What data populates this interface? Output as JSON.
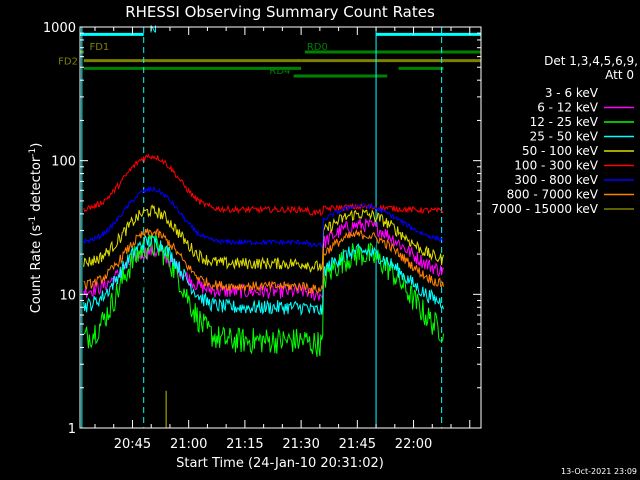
{
  "chart_data": {
    "type": "line",
    "title": "RHESSI Observing Summary Count Rates",
    "xlabel": "Start Time (24-Jan-10 20:31:02)",
    "ylabel_parts": {
      "pre": "Count Rate (s",
      "sup1": "-1",
      "mid": " detector",
      "sup2": "-1",
      "post": ")"
    },
    "x_unit": "minutes of day",
    "xlim": [
      1231,
      1338
    ],
    "ylim": [
      1,
      1000
    ],
    "yscale": "log",
    "x_tick_labels": [
      "20:45",
      "21:00",
      "21:15",
      "21:30",
      "21:45",
      "22:00"
    ],
    "x_tick_values": [
      1245,
      1260,
      1275,
      1290,
      1305,
      1320
    ],
    "y_tick_labels": [
      "1",
      "10",
      "100",
      "1000"
    ],
    "y_tick_values": [
      1,
      10,
      100,
      1000
    ],
    "grid": false,
    "legend_position": "right",
    "legend_header": [
      "Det 1,3,4,5,6,9,",
      "Att 0"
    ],
    "timestamp": "13-Oct-2021 23:09",
    "data_span": [
      1232,
      1328
    ],
    "gap": [
      1296,
      1313
    ],
    "series": [
      {
        "name": "3 - 6 keV",
        "color": "#000000",
        "base1": 6.5,
        "peak1": [
          1249,
          15,
          5
        ],
        "base2": 10,
        "peak2": [
          1306,
          27,
          9
        ],
        "noise": 0.32
      },
      {
        "name": "6 - 12 keV",
        "color": "#ff00ff",
        "base1": 10.5,
        "peak1": [
          1250,
          21,
          6
        ],
        "base2": 14,
        "peak2": [
          1306,
          33,
          9
        ],
        "noise": 0.12
      },
      {
        "name": "12 - 25 keV",
        "color": "#00ff00",
        "base1": 4.5,
        "peak1": [
          1250,
          23,
          6
        ],
        "base2": 4.5,
        "peak2": [
          1306,
          20,
          9
        ],
        "noise": 0.22
      },
      {
        "name": "25 - 50 keV",
        "color": "#00ffff",
        "base1": 8,
        "peak1": [
          1250,
          25,
          6
        ],
        "base2": 8,
        "peak2": [
          1306,
          21,
          9
        ],
        "noise": 0.12
      },
      {
        "name": "50 - 100 keV",
        "color": "#dddd00",
        "base1": 17,
        "peak1": [
          1250,
          42,
          6
        ],
        "base2": 17,
        "peak2": [
          1306,
          40,
          9
        ],
        "noise": 0.1
      },
      {
        "name": "100 - 300 keV",
        "color": "#ff0000",
        "base1": 43,
        "peak1": [
          1250,
          108,
          6
        ],
        "base2": 42,
        "peak2": [
          1306,
          45,
          9
        ],
        "noise": 0.05
      },
      {
        "name": "300 - 800 keV",
        "color": "#0000ff",
        "base1": 24.5,
        "peak1": [
          1250,
          61,
          6
        ],
        "base2": 24.5,
        "peak2": [
          1306,
          46,
          9
        ],
        "noise": 0.04
      },
      {
        "name": "800 - 7000 keV",
        "color": "#ff8000",
        "base1": 11.5,
        "peak1": [
          1250,
          29,
          6
        ],
        "base2": 11,
        "peak2": [
          1306,
          28,
          9
        ],
        "noise": 0.08
      },
      {
        "name": "7000 - 15000 keV",
        "color": "#808000",
        "base1": 0,
        "peak1": [
          1253,
          0,
          0
        ],
        "base2": 0,
        "peak2": [
          1306,
          0,
          0
        ],
        "noise": 0
      }
    ],
    "spikes": [
      {
        "x": 1254,
        "y": 1.9,
        "color": "#808000"
      }
    ],
    "flags": [
      {
        "label": "N",
        "color": "#00ffff",
        "level": 880,
        "segments": [
          [
            1231,
            1248
          ],
          [
            1310,
            1338
          ]
        ],
        "label_at": 1249
      },
      {
        "label": "FD1",
        "color": "#808000",
        "level": 650,
        "segments": [
          [
            1231,
            1232
          ]
        ],
        "label_at": 1233
      },
      {
        "label": "FD2",
        "color": "#808000",
        "level": 560,
        "segments": [
          [
            1232,
            1290
          ],
          [
            1290,
            1338
          ]
        ],
        "label_at": 1230
      },
      {
        "label": "RD0",
        "color": "#008000",
        "level": 650,
        "segments": [
          [
            1291,
            1338
          ]
        ],
        "label_at": 1291,
        "lower_level": 490,
        "lower_segments": [
          [
            1232,
            1290
          ],
          [
            1316,
            1328
          ]
        ]
      },
      {
        "label": "RD4",
        "color": "#008000",
        "level": 430,
        "segments": [
          [
            1288,
            1313
          ]
        ],
        "label_at": 1281
      }
    ],
    "vlines": [
      {
        "x": 1231.5,
        "color": "#00ffff",
        "style": "solid"
      },
      {
        "x": 1248,
        "color": "#00ffff",
        "style": "dashed"
      },
      {
        "x": 1310,
        "color": "#00ffff",
        "style": "solid"
      },
      {
        "x": 1327.5,
        "color": "#00ffff",
        "style": "dashed"
      }
    ]
  }
}
